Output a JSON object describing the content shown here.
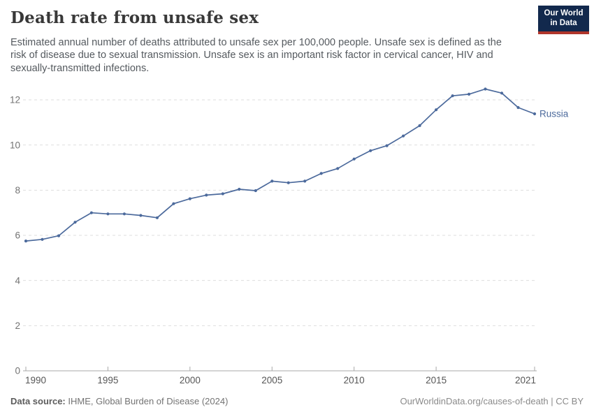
{
  "header": {
    "title": "Death rate from unsafe sex",
    "subtitle": "Estimated annual number of deaths attributed to unsafe sex per 100,000 people. Unsafe sex is defined as the risk of disease due to sexual transmission. Unsafe sex is an important risk factor in cervical cancer, HIV and sexually-transmitted infections.",
    "logo": {
      "line1": "Our World",
      "line2": "in Data",
      "bg_color": "#12294d",
      "accent_color": "#b0352b"
    }
  },
  "chart_data": {
    "type": "line",
    "title": "Death rate from unsafe sex",
    "xlabel": "",
    "ylabel": "",
    "xlim": [
      1990,
      2021
    ],
    "ylim": [
      0,
      12
    ],
    "yticks": [
      0,
      2,
      4,
      6,
      8,
      10,
      12
    ],
    "xticks": [
      1990,
      1995,
      2000,
      2005,
      2010,
      2015,
      2021
    ],
    "grid": "horizontal-dashed",
    "legend_position": "end-of-line-label",
    "colors": {
      "line": "#4c6a9c",
      "gridline": "#dedede",
      "axis": "#a8a8a8",
      "y_tick_label": "#737373",
      "x_tick_label": "#565656"
    },
    "series": [
      {
        "name": "Russia",
        "x": [
          1990,
          1991,
          1992,
          1993,
          1994,
          1995,
          1996,
          1997,
          1998,
          1999,
          2000,
          2001,
          2002,
          2003,
          2004,
          2005,
          2006,
          2007,
          2008,
          2009,
          2010,
          2011,
          2012,
          2013,
          2014,
          2015,
          2016,
          2017,
          2018,
          2019,
          2020,
          2021
        ],
        "values": [
          5.75,
          5.82,
          5.98,
          6.58,
          7.0,
          6.95,
          6.95,
          6.88,
          6.78,
          7.4,
          7.62,
          7.78,
          7.84,
          8.04,
          7.98,
          8.4,
          8.33,
          8.4,
          8.74,
          8.96,
          9.38,
          9.75,
          9.97,
          10.4,
          10.86,
          11.56,
          12.18,
          12.25,
          12.48,
          12.3,
          11.66,
          11.38
        ]
      }
    ]
  },
  "footer": {
    "source_label": "Data source:",
    "source_text": " IHME, Global Burden of Disease (2024)",
    "link_text": "OurWorldinData.org/causes-of-death | CC BY"
  }
}
